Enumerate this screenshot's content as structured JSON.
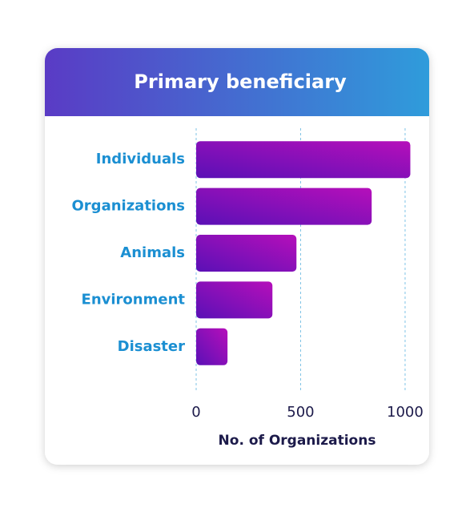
{
  "chart_data": {
    "type": "bar",
    "orientation": "horizontal",
    "title": "Primary beneficiary",
    "x_label": "No. of Organizations",
    "categories": [
      "Individuals",
      "Organizations",
      "Animals",
      "Environment",
      "Disaster"
    ],
    "values": [
      1025,
      840,
      480,
      365,
      150
    ],
    "colors": [
      "#5a10b6",
      "#b60fba"
    ],
    "xlim": [
      0,
      1050
    ],
    "xticks": [
      0,
      500,
      1000
    ],
    "grid": true
  }
}
